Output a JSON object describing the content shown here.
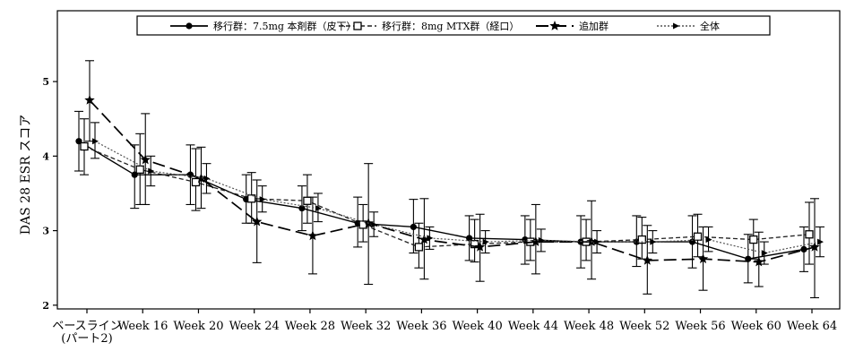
{
  "chart_data": {
    "type": "line",
    "title": "",
    "xlabel": "",
    "ylabel": "DAS 28 ESR スコア",
    "categories": [
      "ベースライン\n(パート2)",
      "Week 16",
      "Week 20",
      "Week 24",
      "Week 28",
      "Week 32",
      "Week 36",
      "Week 40",
      "Week 44",
      "Week 48",
      "Week 52",
      "Week 56",
      "Week 60",
      "Week 64"
    ],
    "yticks": [
      2,
      3,
      4,
      5
    ],
    "ylim": [
      1.95,
      5.95
    ],
    "legend_position": "top",
    "error_bars": true,
    "series": [
      {
        "name": "移行群：7.5mg 本剤群（皮下）",
        "marker": "circle",
        "line": "solid",
        "values": [
          4.2,
          3.75,
          3.75,
          3.42,
          3.3,
          3.1,
          3.05,
          2.9,
          2.88,
          2.85,
          2.85,
          2.85,
          2.62,
          2.75
        ],
        "lower": [
          3.8,
          3.3,
          3.35,
          3.1,
          3.0,
          2.78,
          2.7,
          2.6,
          2.55,
          2.5,
          2.52,
          2.5,
          2.3,
          2.45
        ],
        "upper": [
          4.6,
          4.15,
          4.15,
          3.75,
          3.6,
          3.45,
          3.42,
          3.2,
          3.2,
          3.2,
          3.2,
          3.2,
          2.95,
          3.05
        ]
      },
      {
        "name": "移行群：8mg MTX群（経口）",
        "marker": "square",
        "line": "dashed",
        "values": [
          4.13,
          3.82,
          3.65,
          3.43,
          3.4,
          3.08,
          2.78,
          2.82,
          2.85,
          2.85,
          2.88,
          2.92,
          2.88,
          2.95
        ],
        "lower": [
          3.75,
          3.35,
          3.27,
          3.1,
          3.1,
          2.85,
          2.5,
          2.58,
          2.6,
          2.6,
          2.62,
          2.65,
          2.62,
          2.55
        ],
        "upper": [
          4.5,
          4.3,
          4.1,
          3.78,
          3.75,
          3.35,
          3.1,
          3.15,
          3.15,
          3.15,
          3.18,
          3.22,
          3.15,
          3.38
        ]
      },
      {
        "name": "追加群",
        "marker": "star",
        "line": "longdash",
        "values": [
          4.75,
          3.95,
          3.7,
          3.12,
          2.93,
          3.1,
          2.88,
          2.78,
          2.85,
          2.85,
          2.6,
          2.62,
          2.58,
          2.78
        ],
        "lower": [
          4.2,
          3.35,
          3.3,
          2.57,
          2.42,
          2.28,
          2.35,
          2.32,
          2.42,
          2.35,
          2.15,
          2.2,
          2.25,
          2.1
        ],
        "upper": [
          5.28,
          4.57,
          4.12,
          3.68,
          3.45,
          3.9,
          3.43,
          3.22,
          3.35,
          3.4,
          3.07,
          3.05,
          2.98,
          3.43
        ]
      },
      {
        "name": "全体",
        "marker": "arrow",
        "line": "dotted",
        "values": [
          4.2,
          3.8,
          3.7,
          3.42,
          3.3,
          3.08,
          2.9,
          2.85,
          2.87,
          2.85,
          2.85,
          2.88,
          2.7,
          2.85
        ],
        "lower": [
          3.97,
          3.6,
          3.5,
          3.25,
          3.12,
          2.92,
          2.75,
          2.7,
          2.72,
          2.7,
          2.7,
          2.72,
          2.55,
          2.65
        ],
        "upper": [
          4.45,
          4.0,
          3.9,
          3.6,
          3.5,
          3.25,
          3.05,
          3.0,
          3.02,
          3.0,
          3.0,
          3.05,
          2.85,
          3.05
        ]
      }
    ]
  }
}
